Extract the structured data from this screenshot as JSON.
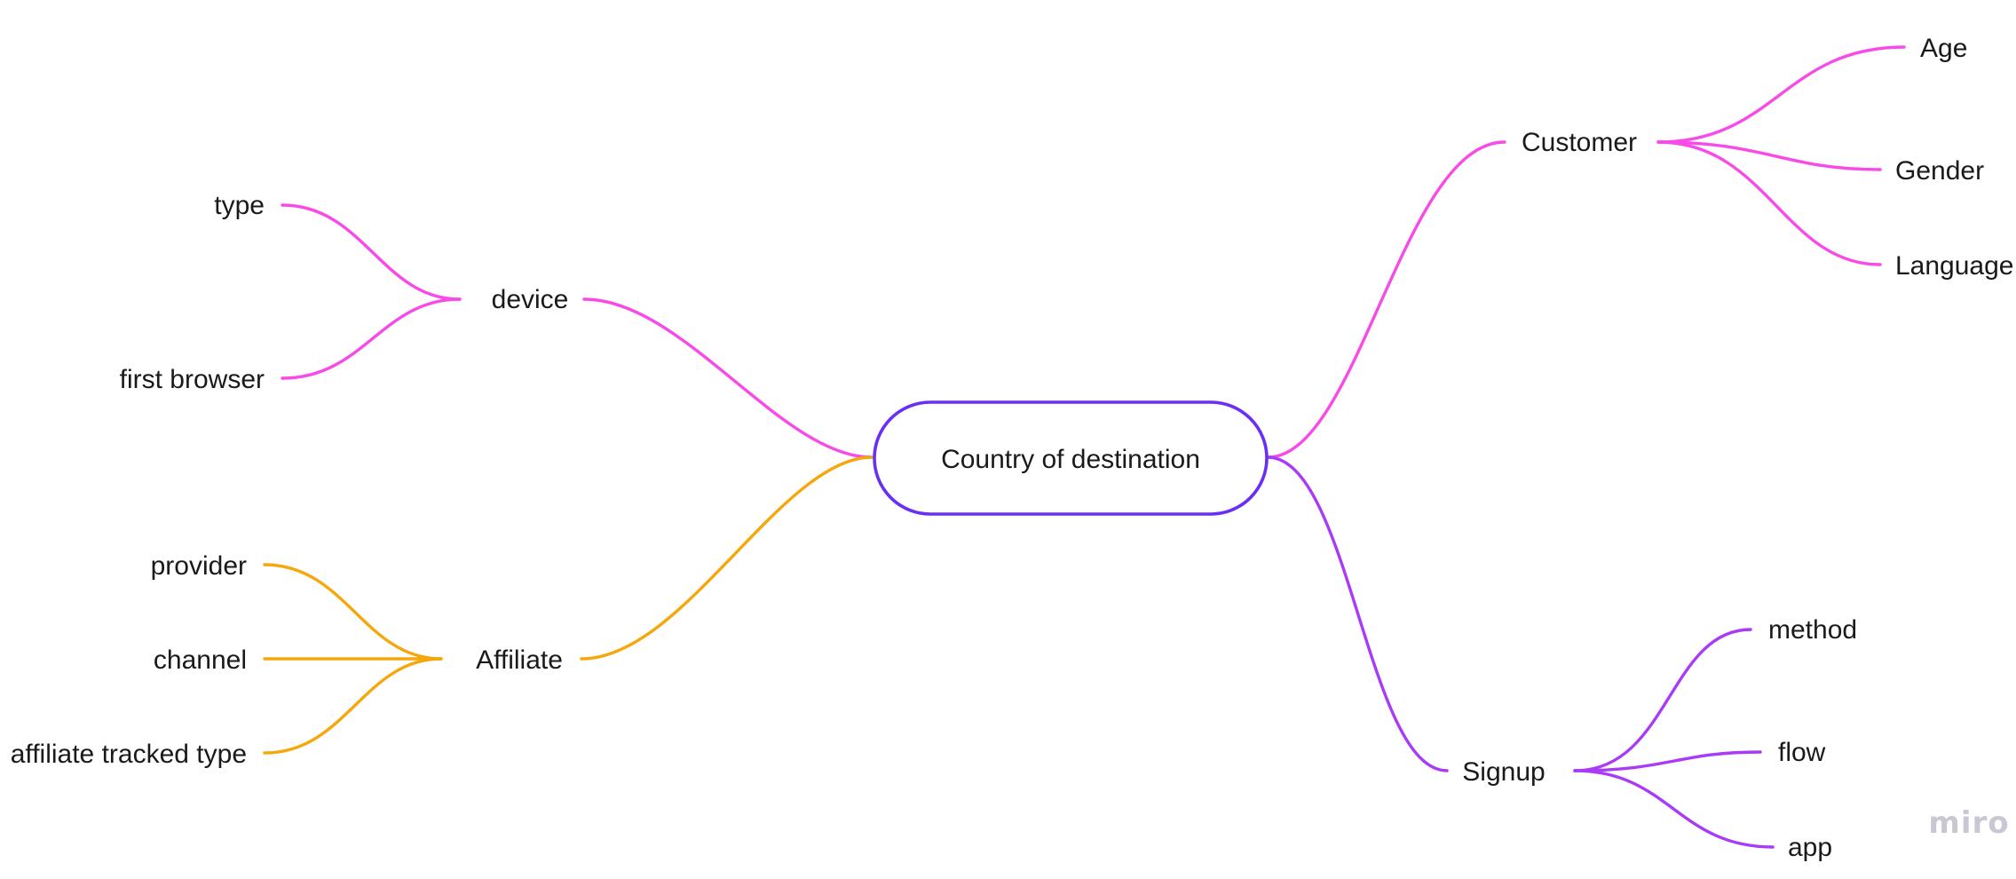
{
  "colors": {
    "pink": "#f74ae6",
    "orange": "#f5a80d",
    "purple": "#a93af5",
    "root_border": "#6a2ff5",
    "text": "#1a1a1a",
    "watermark": "#c8c8d4"
  },
  "mindmap": {
    "root": "Country of destination",
    "branches": {
      "device": {
        "label": "device",
        "color": "pink",
        "children": [
          "type",
          "first browser"
        ]
      },
      "affiliate": {
        "label": "Affiliate",
        "color": "orange",
        "children": [
          "provider",
          "channel",
          "affiliate tracked type"
        ]
      },
      "customer": {
        "label": "Customer",
        "color": "pink",
        "children": [
          "Age",
          "Gender",
          "Language"
        ]
      },
      "signup": {
        "label": "Signup",
        "color": "purple",
        "children": [
          "method",
          "flow",
          "app"
        ]
      }
    }
  },
  "watermark": "miro"
}
